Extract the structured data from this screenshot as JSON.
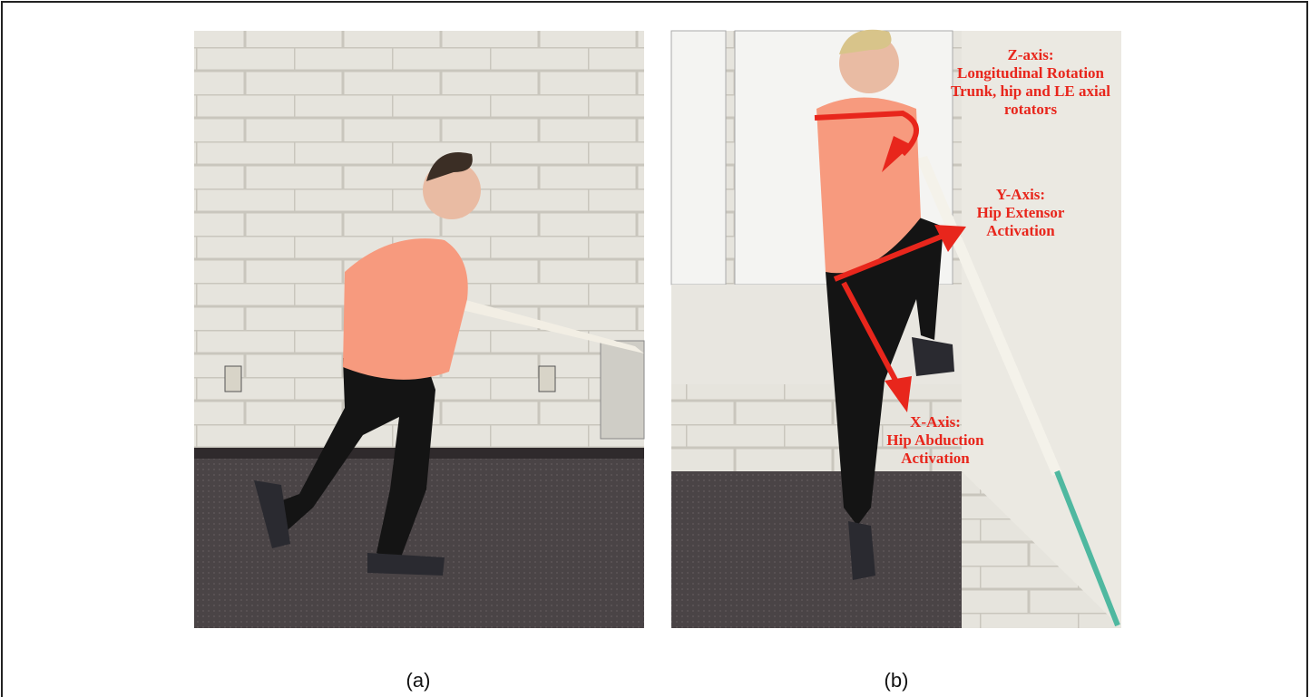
{
  "figure": {
    "panels": [
      {
        "label": "(a)"
      },
      {
        "label": "(b)",
        "annotations": [
          {
            "lines": [
              "Z-axis:",
              "Longitudinal Rotation",
              "Trunk, hip and LE axial",
              "rotators"
            ]
          },
          {
            "lines": [
              "Y-Axis:",
              "Hip Extensor",
              "Activation"
            ]
          },
          {
            "lines": [
              "X-Axis:",
              "Hip Abduction",
              "Activation"
            ]
          }
        ]
      }
    ]
  }
}
